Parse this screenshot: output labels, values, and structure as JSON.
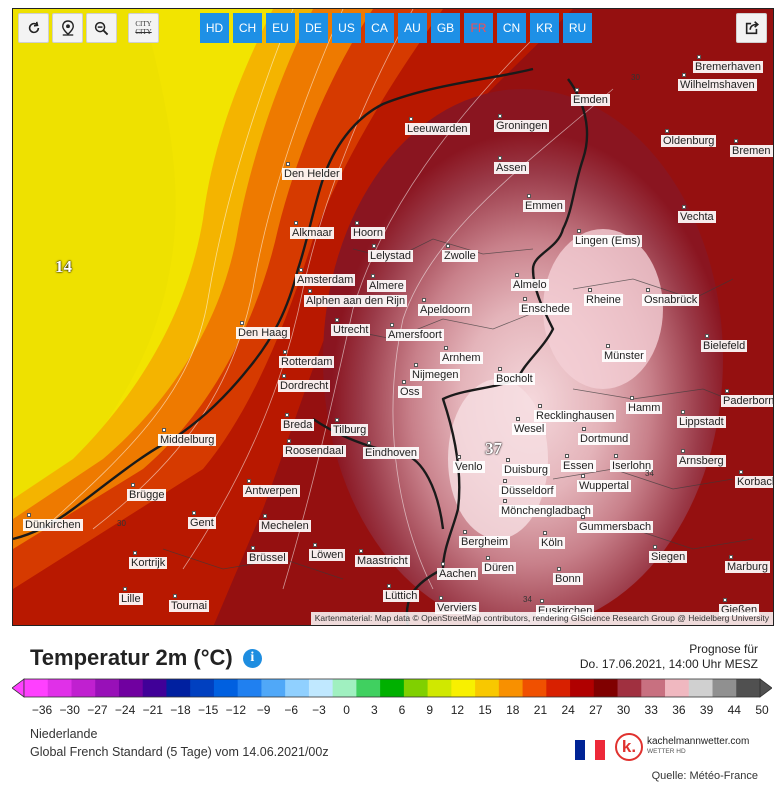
{
  "toolbar": {
    "buttons": [
      {
        "name": "reload",
        "icon": "reload-icon"
      },
      {
        "name": "location",
        "icon": "location-pin-icon"
      },
      {
        "name": "zoom-out",
        "icon": "zoom-out-icon"
      }
    ],
    "city_toggle": {
      "line1": "CITY",
      "line2": "CITY"
    },
    "regions": [
      "HD",
      "CH",
      "EU",
      "DE",
      "US",
      "CA",
      "AU",
      "GB",
      "FR",
      "CN",
      "KR",
      "RU"
    ],
    "active_region": "FR",
    "share_icon": "share-icon",
    "colors": {
      "region_bg": "#1e90e6",
      "active_text": "#ff4b4b"
    }
  },
  "map": {
    "attribution": "Kartenmaterial: Map data © OpenStreetMap contributors, rendering GIScience Research Group @ Heidelberg University",
    "cities": [
      "Bremerhaven",
      "Wilhelmshaven",
      "Emden",
      "Oldenburg",
      "Bremen",
      "Leeuwarden",
      "Groningen",
      "Den Helder",
      "Assen",
      "Emmen",
      "Vechta",
      "Alkmaar",
      "Hoorn",
      "Lelystad",
      "Zwolle",
      "Lingen (Ems)",
      "Amsterdam",
      "Almere",
      "Almelo",
      "Osnabrück",
      "Alphen aan den Rijn",
      "Apeldoorn",
      "Enschede",
      "Rheine",
      "Den Haag",
      "Utrecht",
      "Amersfoort",
      "Bielefeld",
      "Arnhem",
      "Münster",
      "Rotterdam",
      "Nijmegen",
      "Bocholt",
      "Dordrecht",
      "Oss",
      "Paderborn",
      "Hamm",
      "Recklinghausen",
      "Lippstadt",
      "Breda",
      "Tilburg",
      "Wesel",
      "Middelburg",
      "Dortmund",
      "Roosendaal",
      "Eindhoven",
      "Arnsberg",
      "Venlo",
      "Duisburg",
      "Essen",
      "Iserlohn",
      "Korbach",
      "Brügge",
      "Antwerpen",
      "Düsseldorf",
      "Wuppertal",
      "Dünkirchen",
      "Gent",
      "Mechelen",
      "Mönchengladbach",
      "Gummersbach",
      "Kortrijk",
      "Brüssel",
      "Löwen",
      "Maastricht",
      "Bergheim",
      "Köln",
      "Siegen",
      "Marburg",
      "Aachen",
      "Düren",
      "Lille",
      "Tournai",
      "Lüttich",
      "Bonn",
      "Verviers",
      "Euskirchen",
      "Gießen"
    ],
    "temperatures": [
      {
        "value": "14"
      },
      {
        "value": "37"
      }
    ],
    "isolines": [
      "30",
      "30",
      "34",
      "34"
    ]
  },
  "legend": {
    "title": "Temperatur 2m (°C)",
    "info_icon": "info-icon",
    "forecast_line1": "Prognose für",
    "forecast_line2": "Do. 17.06.2021, 14:00 Uhr MESZ",
    "scale": [
      "−36",
      "−30",
      "−27",
      "−24",
      "−21",
      "−18",
      "−15",
      "−12",
      "−9",
      "−6",
      "−3",
      "0",
      "3",
      "6",
      "9",
      "12",
      "15",
      "18",
      "21",
      "24",
      "27",
      "30",
      "33",
      "36",
      "39",
      "44",
      "50"
    ],
    "colors": [
      "#ff40ff",
      "#e030e8",
      "#c020d0",
      "#9810b8",
      "#7000a0",
      "#400098",
      "#0020a0",
      "#0040c0",
      "#0060e0",
      "#2080f0",
      "#50a8f8",
      "#90d0ff",
      "#c0e8ff",
      "#a0f0c0",
      "#40d060",
      "#00b000",
      "#80d000",
      "#d0e800",
      "#f8f000",
      "#f8c800",
      "#f89000",
      "#f05000",
      "#d82000",
      "#b00000",
      "#800000",
      "#a03040",
      "#c87080",
      "#f0b8c0",
      "#d0d0d0",
      "#909090",
      "#505050"
    ],
    "region": "Niederlande",
    "model": "Global French Standard (5 Tage) vom 14.06.2021/00z",
    "brand_name": "kachelmannwetter.com",
    "brand_sub": "WETTER HD",
    "brand_letter": "k.",
    "flag_colors": [
      "#002395",
      "#ffffff",
      "#ed2939"
    ],
    "source": "Quelle: Météo-France"
  }
}
